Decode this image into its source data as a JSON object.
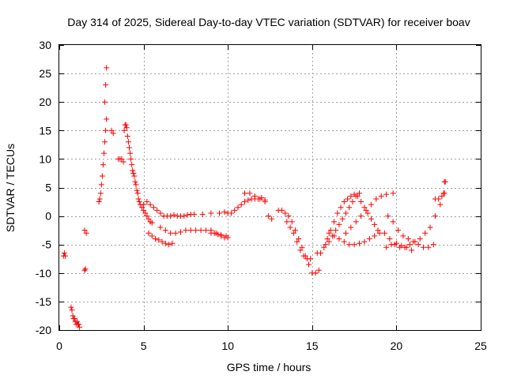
{
  "chart_data": {
    "type": "scatter",
    "title": "Day 314 of 2025, Sidereal Day-to-day VTEC variation (SDTVAR) for receiver boav",
    "xlabel": "GPS time / hours",
    "ylabel": "SDTVAR / TECUs",
    "xlim": [
      0,
      25
    ],
    "ylim": [
      -20,
      30
    ],
    "xticks": [
      "0",
      "5",
      "10",
      "15",
      "20",
      "25"
    ],
    "yticks": [
      "-20",
      "-15",
      "-10",
      "-5",
      "0",
      "5",
      "10",
      "15",
      "20",
      "25",
      "30"
    ],
    "grid": true,
    "marker": "+",
    "color": "#ff0000",
    "series": [
      {
        "name": "SDTVAR",
        "x": [
          0.25,
          0.3,
          0.35,
          0.7,
          0.75,
          0.8,
          0.85,
          0.9,
          0.95,
          1.0,
          1.05,
          1.1,
          1.15,
          1.2,
          1.5,
          1.55,
          1.6,
          1.5,
          2.35,
          2.4,
          2.45,
          2.5,
          2.55,
          2.6,
          2.65,
          2.7,
          2.75,
          2.8,
          2.7,
          2.75,
          2.8,
          3.1,
          3.2,
          3.5,
          3.6,
          3.7,
          3.8,
          3.85,
          3.9,
          3.95,
          4.0,
          4.05,
          4.1,
          4.15,
          4.2,
          4.25,
          4.3,
          4.35,
          4.4,
          4.45,
          4.5,
          4.55,
          4.6,
          4.65,
          4.7,
          4.75,
          4.8,
          4.9,
          5.0,
          5.1,
          5.2,
          5.3,
          5.4,
          5.5,
          5.0,
          5.2,
          5.4,
          5.6,
          5.8,
          6.0,
          6.2,
          6.4,
          6.6,
          6.8,
          7.0,
          7.2,
          7.4,
          7.6,
          7.8,
          8.0,
          8.5,
          9.0,
          9.5,
          9.8,
          10.0,
          5.3,
          5.5,
          5.7,
          5.9,
          6.1,
          6.3,
          6.5,
          6.7,
          6.0,
          6.3,
          6.6,
          6.9,
          7.2,
          7.5,
          7.8,
          8.1,
          8.4,
          8.7,
          9.0,
          9.3,
          9.6,
          9.9,
          9.0,
          9.2,
          9.4,
          9.6,
          9.8,
          10.0,
          10.2,
          10.4,
          10.6,
          10.8,
          11.0,
          11.2,
          11.4,
          11.6,
          11.8,
          12.0,
          12.2,
          11.0,
          11.3,
          11.6,
          11.9,
          12.2,
          12.4,
          12.6,
          13.0,
          13.2,
          13.4,
          13.6,
          13.8,
          14.0,
          14.2,
          14.4,
          14.6,
          14.8,
          15.0,
          15.2,
          15.4,
          13.5,
          13.7,
          13.9,
          14.1,
          14.3,
          14.5,
          14.7,
          14.9,
          15.3,
          15.5,
          15.7,
          15.9,
          16.1,
          16.3,
          16.5,
          16.7,
          16.9,
          17.1,
          17.3,
          17.5,
          17.7,
          17.9,
          18.1,
          18.3,
          18.5,
          18.7,
          18.9,
          15.8,
          16.0,
          16.2,
          16.4,
          16.6,
          16.8,
          17.0,
          17.2,
          17.4,
          17.6,
          17.8,
          16.0,
          16.3,
          16.6,
          16.9,
          17.2,
          17.5,
          17.8,
          18.1,
          18.4,
          18.7,
          19.0,
          17.0,
          17.3,
          17.6,
          17.9,
          18.2,
          18.5,
          18.8,
          19.1,
          19.4,
          19.8,
          19.3,
          19.6,
          19.9,
          20.2,
          20.5,
          20.8,
          21.1,
          21.4,
          21.7,
          22.0,
          22.3,
          22.6,
          19.5,
          19.8,
          20.1,
          20.4,
          20.7,
          21.0,
          21.3,
          21.6,
          21.9,
          22.2,
          19.4,
          19.7,
          20.0,
          20.3,
          20.6,
          20.9,
          22.3,
          22.5,
          22.7,
          22.8,
          22.85,
          22.9,
          22.85
        ],
        "y": [
          -7,
          -6.5,
          -7,
          -16,
          -16.5,
          -17.5,
          -18,
          -18,
          -18.5,
          -19,
          -18.5,
          -19,
          -19,
          -19.5,
          -9.5,
          -9.3,
          -3,
          -2.5,
          2.5,
          3,
          4,
          5.5,
          7,
          9,
          11,
          13,
          15,
          17,
          20,
          23,
          26,
          15,
          14.5,
          10,
          10,
          10,
          9.5,
          15,
          16,
          16,
          15.5,
          14,
          13,
          12,
          11,
          10,
          9,
          8,
          7.5,
          7,
          6,
          5.5,
          4.5,
          4,
          3,
          2.5,
          2,
          1.5,
          1,
          0.5,
          0,
          -0.5,
          -1,
          -1.2,
          2,
          2.5,
          2,
          1.5,
          1,
          0.5,
          0,
          0,
          0,
          0.2,
          0,
          0,
          0,
          0.2,
          0.3,
          0.3,
          0.3,
          0.5,
          0.5,
          0.7,
          0.5,
          -3,
          -3.5,
          -4,
          -4.2,
          -4.5,
          -4.8,
          -5,
          -4.8,
          -2,
          -2.5,
          -3,
          -3,
          -2.8,
          -2.5,
          -2.5,
          -2.5,
          -2.5,
          -2.5,
          -2.5,
          -3,
          -3.3,
          -3.5,
          -3,
          -3,
          -3.2,
          -3.5,
          -3.8,
          -3.8,
          0.5,
          1,
          1.5,
          2,
          2.5,
          2.8,
          3,
          3,
          3,
          3.2,
          2.8,
          4,
          4,
          3.5,
          3,
          2.5,
          0,
          -0.5,
          1,
          1,
          0.5,
          0,
          -1,
          -2.5,
          -4,
          -5.5,
          -7,
          -8.5,
          -10,
          -10,
          -9.5,
          -1,
          -2,
          -3,
          -4.5,
          -6,
          -7,
          -7.5,
          -7.5,
          -6.5,
          -6.5,
          -5.5,
          -4,
          -2.5,
          -1,
          0.5,
          1.5,
          2.5,
          3,
          3.5,
          3.8,
          3.5,
          2.5,
          1.5,
          0.5,
          -0.5,
          -1.5,
          -2.5,
          -5,
          -4.5,
          -3.5,
          -2.5,
          -1.5,
          -0.5,
          0.5,
          1.5,
          2.5,
          3.5,
          4,
          -3,
          -3.5,
          -4,
          -4.5,
          -5,
          -5,
          -4.8,
          -4.5,
          -4,
          -3.5,
          -3,
          -3,
          -2,
          -1,
          0,
          1,
          2,
          3,
          3.5,
          3.8,
          4,
          -3,
          -4,
          -5,
          -5.5,
          -5.5,
          -5,
          -4.5,
          -4,
          -3,
          -2,
          0,
          2,
          0,
          -1,
          -2.5,
          -3.5,
          -4,
          -4.5,
          -5,
          -5.5,
          -5.5,
          -5,
          -5.5,
          -5,
          -4.8,
          -5.2,
          -5.5,
          -6,
          3,
          3,
          3.5,
          4,
          4,
          6,
          6
        ]
      }
    ]
  }
}
